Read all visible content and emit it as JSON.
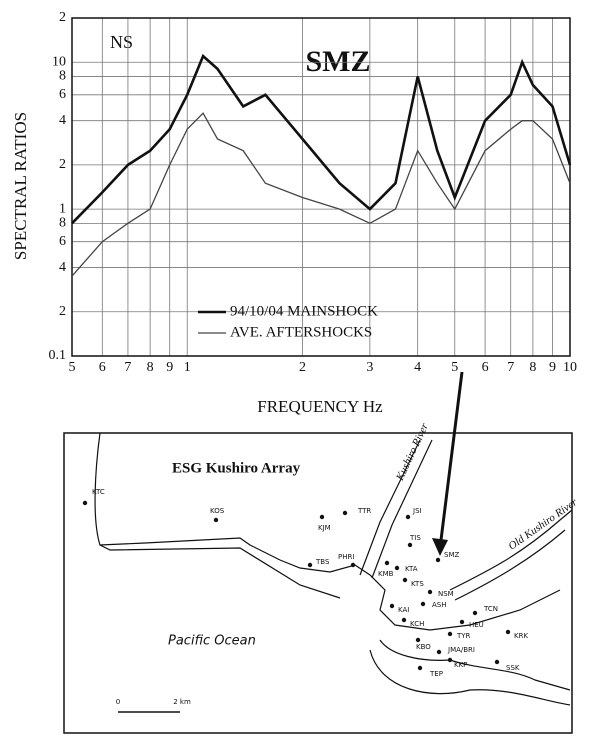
{
  "chart_data": {
    "type": "line",
    "component": "NS",
    "station": "SMZ",
    "x_label": "FREQUENCY  Hz",
    "y_label": "SPECTRAL RATIOS",
    "x": [
      0.5,
      0.6,
      0.7,
      0.8,
      0.9,
      1.0,
      1.1,
      1.2,
      1.4,
      1.6,
      2,
      2.5,
      3,
      3.5,
      4,
      4.5,
      5,
      6,
      7,
      7.5,
      8,
      9,
      10
    ],
    "series": [
      {
        "name": "94/10/04 MAINSHOCK",
        "color": "#111111",
        "values": [
          0.8,
          1.3,
          2.0,
          2.5,
          3.5,
          6,
          11,
          9,
          5,
          6,
          3,
          1.5,
          1.0,
          1.5,
          8,
          2.5,
          1.2,
          4,
          6,
          10,
          7,
          5,
          2
        ]
      },
      {
        "name": "AVE. AFTERSHOCKS",
        "color": "#444444",
        "values": [
          0.35,
          0.6,
          0.8,
          1.0,
          2.0,
          3.5,
          4.5,
          3.0,
          2.5,
          1.5,
          1.2,
          1.0,
          0.8,
          1.0,
          2.5,
          1.5,
          1.0,
          2.5,
          3.5,
          4,
          4,
          3,
          1.5
        ]
      }
    ],
    "log_x": true,
    "log_y": true,
    "grid": true,
    "xlim": [
      0.5,
      10
    ],
    "xticks": [
      {
        "value": 0.5,
        "label": "5"
      },
      {
        "value": 0.6,
        "label": "6"
      },
      {
        "value": 0.7,
        "label": "7"
      },
      {
        "value": 0.8,
        "label": "8"
      },
      {
        "value": 0.9,
        "label": "9"
      },
      1,
      2,
      3,
      4,
      5,
      6,
      7,
      8,
      9,
      10
    ],
    "ylim": [
      0.1,
      20
    ],
    "yticks": [
      0.1,
      {
        "value": 0.2,
        "label": "2"
      },
      {
        "value": 0.4,
        "label": "4"
      },
      {
        "value": 0.6,
        "label": "6"
      },
      {
        "value": 0.8,
        "label": "8"
      },
      1,
      2,
      4,
      6,
      8,
      10,
      {
        "value": 20,
        "label": "2"
      }
    ]
  },
  "map": {
    "title": "ESG Kushiro Array",
    "river_labels": [
      "Kushiro River",
      "Old Kushiro River"
    ],
    "sea_label": "Pacific Ocean",
    "scale": [
      "0",
      "2 km"
    ],
    "stations": [
      "KTC",
      "KOS",
      "KJM",
      "TTR",
      "JSI",
      "TIS",
      "SMZ",
      "PHRI",
      "TBS",
      "KMB",
      "KTA",
      "KTS",
      "NSM",
      "ASH",
      "KAI",
      "KCH",
      "HEU",
      "TCN",
      "TYR",
      "KBO",
      "JMA/BRI",
      "KRK",
      "TEP",
      "KKP",
      "SSK"
    ]
  }
}
